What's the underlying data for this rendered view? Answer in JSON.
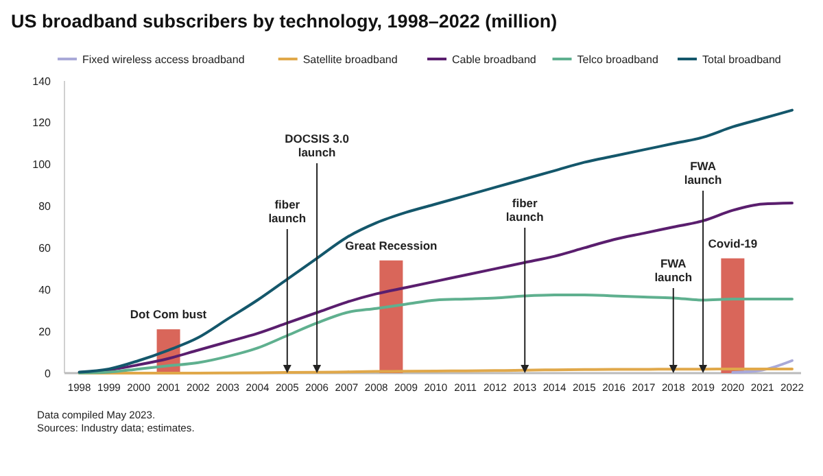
{
  "chart_data": {
    "type": "line",
    "title": "US broadband subscribers by technology, 1998–2022 (million)",
    "x": [
      1998,
      1999,
      2000,
      2001,
      2002,
      2003,
      2004,
      2005,
      2006,
      2007,
      2008,
      2009,
      2010,
      2011,
      2012,
      2013,
      2014,
      2015,
      2016,
      2017,
      2018,
      2019,
      2020,
      2021,
      2022
    ],
    "series": [
      {
        "type": "bar",
        "color": "#d9665a",
        "x": [
          2001,
          2008.5,
          2020
        ],
        "values": [
          21,
          54,
          55
        ]
      },
      {
        "name": "Fixed wireless access broadband",
        "color": "#a9a9d8",
        "values": [
          null,
          null,
          null,
          null,
          null,
          null,
          null,
          null,
          null,
          null,
          null,
          null,
          null,
          null,
          null,
          null,
          null,
          null,
          null,
          null,
          null,
          null,
          0.3,
          1.5,
          6
        ]
      },
      {
        "name": "Satellite broadband",
        "color": "#e0a84a",
        "values": [
          0,
          0,
          0,
          0,
          0,
          0.1,
          0.2,
          0.3,
          0.4,
          0.6,
          0.8,
          0.9,
          1,
          1.1,
          1.2,
          1.4,
          1.6,
          1.7,
          1.8,
          1.8,
          1.9,
          1.9,
          2,
          2,
          2
        ]
      },
      {
        "name": "Cable broadband",
        "color": "#5a1e6e",
        "values": [
          0.3,
          1.5,
          4,
          7,
          11,
          15,
          19,
          24,
          29,
          34,
          38,
          41,
          44,
          47,
          50,
          53,
          56,
          60,
          64,
          67,
          70,
          73,
          78,
          81,
          81.5
        ]
      },
      {
        "name": "Telco broadband",
        "color": "#5fb08f",
        "values": [
          0.1,
          0.5,
          2,
          3.5,
          5,
          8,
          12,
          18,
          24,
          29,
          31,
          33,
          35,
          35.5,
          36,
          37,
          37.5,
          37.5,
          37,
          36.5,
          36,
          35,
          35.5,
          35.5,
          35.5
        ]
      },
      {
        "name": "Total broadband",
        "color": "#14576b",
        "values": [
          0.5,
          2,
          6,
          11,
          17,
          26,
          35,
          45,
          55,
          65,
          72,
          77,
          81,
          85,
          89,
          93,
          97,
          101,
          104,
          107,
          110,
          113,
          118,
          122,
          126
        ]
      }
    ],
    "xlim": [
      1997.5,
      2022.3
    ],
    "xticks": [
      1998,
      1999,
      2000,
      2001,
      2002,
      2003,
      2004,
      2005,
      2006,
      2007,
      2008,
      2009,
      2010,
      2011,
      2012,
      2013,
      2014,
      2015,
      2016,
      2017,
      2018,
      2019,
      2020,
      2021,
      2022
    ],
    "ylim": [
      0,
      140
    ],
    "yticks": [
      0,
      20,
      40,
      60,
      80,
      100,
      120,
      140
    ],
    "legend": "top",
    "annotations": [
      {
        "text": "Dot Com bust",
        "x": 2001,
        "y": 21
      },
      {
        "text": "Great Recession",
        "x": 2008.5,
        "y": 54
      },
      {
        "text": "Covid-19",
        "x": 2020,
        "y": 55
      },
      {
        "text": "fiber launch",
        "x": 2005,
        "y": 0
      },
      {
        "text": "DOCSIS 3.0 launch",
        "x": 2006,
        "y": 0
      },
      {
        "text": "fiber launch",
        "x": 2013,
        "y": 0
      },
      {
        "text": "FWA launch",
        "x": 2018,
        "y": 0
      },
      {
        "text": "FWA launch",
        "x": 2019,
        "y": 0
      },
      "Data compiled May 2023.",
      "Sources: Industry data; estimates."
    ]
  }
}
